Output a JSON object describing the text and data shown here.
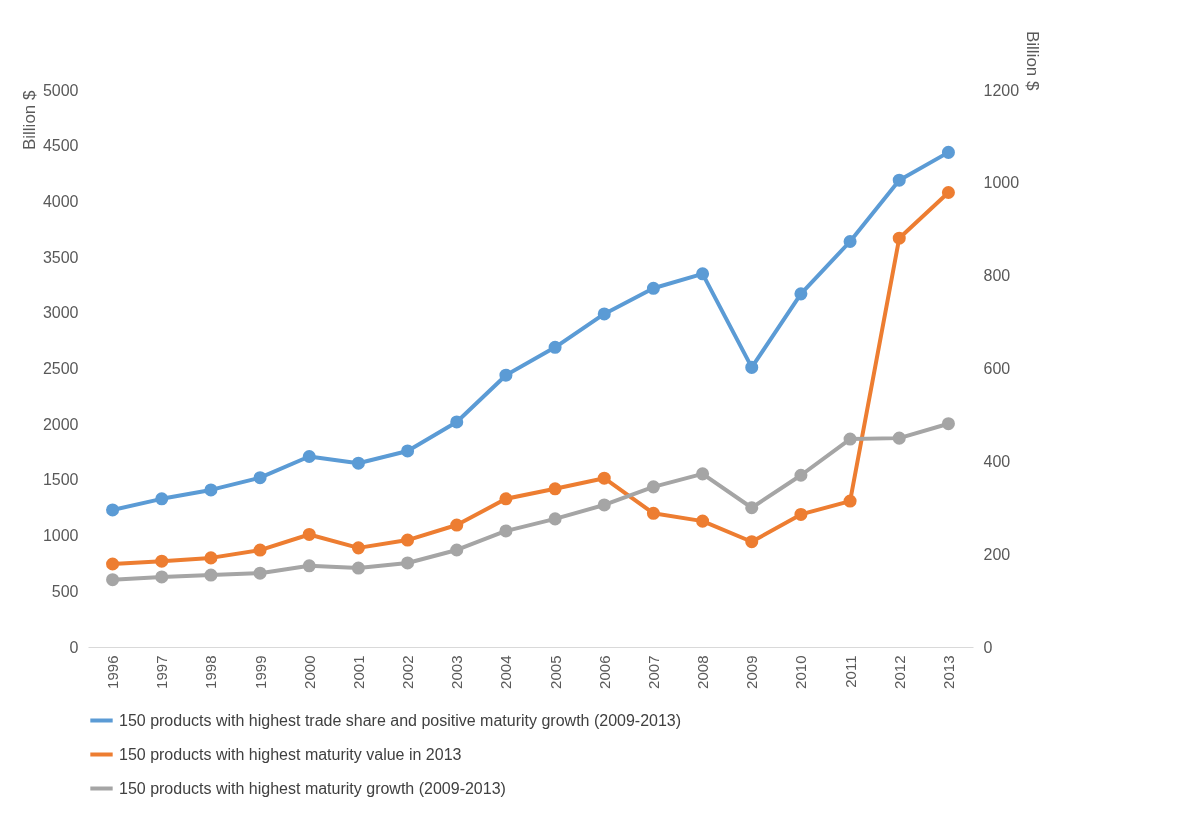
{
  "chart_data": {
    "type": "line",
    "ylabel": "Billion $",
    "y2label": "Billion $",
    "categories": [
      "1996",
      "1997",
      "1998",
      "1999",
      "2000",
      "2001",
      "2002",
      "2003",
      "2004",
      "2005",
      "2006",
      "2007",
      "2008",
      "2009",
      "2010",
      "2011",
      "2012",
      "2013"
    ],
    "series": [
      {
        "name": "150 products with highest trade share and positive maturity growth (2009-2013)",
        "color": "#5b9bd5",
        "values": [
          1230,
          1330,
          1410,
          1520,
          1710,
          1650,
          1760,
          2020,
          2440,
          2690,
          2990,
          3220,
          3350,
          2510,
          3170,
          3640,
          4190,
          4440
        ]
      },
      {
        "name": "150 products with highest maturity value in 2013",
        "color": "#ed7d31",
        "values": [
          745,
          770,
          800,
          870,
          1010,
          890,
          960,
          1095,
          1330,
          1420,
          1515,
          1200,
          1130,
          945,
          1190,
          1310,
          3670,
          4080
        ]
      },
      {
        "name": "150 products with highest maturity growth (2009-2013)",
        "color": "#a5a5a5",
        "axis": "y2",
        "values": [
          145,
          151,
          155,
          159,
          175,
          170,
          181,
          209,
          250,
          276,
          306,
          345,
          373,
          300,
          370,
          448,
          450,
          481
        ]
      }
    ],
    "ylim": [
      0,
      5000
    ],
    "yticks": [
      0,
      500,
      1000,
      1500,
      2000,
      2500,
      3000,
      3500,
      4000,
      4500,
      5000
    ],
    "y2lim": [
      0,
      1200
    ],
    "y2ticks": [
      0,
      200,
      400,
      600,
      800,
      1000,
      1200
    ],
    "legend": "bottom",
    "marker": "circle",
    "line_style": "solid",
    "grid": false
  }
}
